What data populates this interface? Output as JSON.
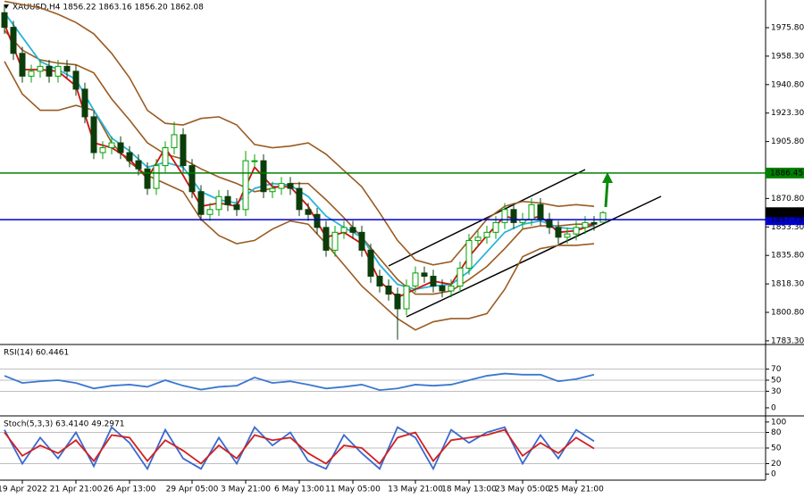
{
  "chart_data": [
    {
      "type": "candlestick",
      "title": "XAUUSD,H4 1856.22 1863.16 1856.20 1862.08",
      "up_color": "#00a000",
      "down_color": "#0b3d0b",
      "open": [
        1985,
        1976,
        1960,
        1946,
        1949,
        1952,
        1946,
        1952,
        1949,
        1938,
        1921,
        1899,
        1902,
        1905,
        1899,
        1894,
        1889,
        1877,
        1891,
        1902,
        1910,
        1891,
        1875,
        1861,
        1864,
        1872,
        1867,
        1864,
        1894,
        1894,
        1875,
        1877,
        1880,
        1877,
        1864,
        1861,
        1853,
        1839,
        1850,
        1853,
        1850,
        1839,
        1823,
        1817,
        1812,
        1803,
        1817,
        1825,
        1823,
        1817,
        1814,
        1817,
        1828,
        1845,
        1847,
        1850,
        1856,
        1864,
        1856,
        1858,
        1867,
        1858,
        1853,
        1847,
        1849,
        1853,
        1856,
        1856.22
      ],
      "high": [
        1990,
        1980,
        1964,
        1953,
        1956,
        1956,
        1956,
        1956,
        1953,
        1942,
        1925,
        1906,
        1909,
        1909,
        1903,
        1898,
        1893,
        1895,
        1906,
        1918,
        1914,
        1895,
        1879,
        1868,
        1876,
        1876,
        1871,
        1900,
        1898,
        1898,
        1881,
        1884,
        1884,
        1881,
        1868,
        1865,
        1857,
        1854,
        1857,
        1857,
        1854,
        1843,
        1827,
        1821,
        1816,
        1821,
        1829,
        1829,
        1827,
        1821,
        1821,
        1832,
        1849,
        1851,
        1854,
        1860,
        1868,
        1868,
        1862,
        1871,
        1871,
        1862,
        1857,
        1853,
        1857,
        1860,
        1860,
        1863.16
      ],
      "low": [
        1972,
        1956,
        1942,
        1942,
        1945,
        1942,
        1942,
        1945,
        1934,
        1917,
        1895,
        1895,
        1898,
        1895,
        1890,
        1885,
        1873,
        1873,
        1887,
        1898,
        1887,
        1871,
        1857,
        1857,
        1860,
        1863,
        1860,
        1860,
        1890,
        1871,
        1871,
        1873,
        1873,
        1860,
        1857,
        1849,
        1835,
        1835,
        1846,
        1846,
        1835,
        1819,
        1813,
        1808,
        1784,
        1799,
        1813,
        1819,
        1813,
        1810,
        1810,
        1813,
        1824,
        1841,
        1843,
        1846,
        1852,
        1852,
        1852,
        1854,
        1854,
        1849,
        1843,
        1843,
        1845,
        1849,
        1851,
        1856.2
      ],
      "close": [
        1976,
        1960,
        1946,
        1949,
        1952,
        1946,
        1952,
        1949,
        1938,
        1921,
        1899,
        1902,
        1905,
        1899,
        1894,
        1889,
        1877,
        1891,
        1902,
        1910,
        1891,
        1875,
        1861,
        1864,
        1872,
        1867,
        1864,
        1894,
        1894,
        1875,
        1877,
        1880,
        1877,
        1864,
        1861,
        1853,
        1839,
        1850,
        1853,
        1850,
        1839,
        1823,
        1817,
        1812,
        1803,
        1817,
        1825,
        1823,
        1817,
        1814,
        1817,
        1828,
        1845,
        1847,
        1850,
        1856,
        1864,
        1856,
        1858,
        1867,
        1858,
        1853,
        1847,
        1849,
        1853,
        1856,
        1855,
        1862.08
      ],
      "categories": [
        null,
        null,
        "19 Apr 2022",
        null,
        null,
        null,
        null,
        null,
        "21 Apr 21:00",
        null,
        null,
        null,
        null,
        null,
        "26 Apr 13:00",
        null,
        null,
        null,
        null,
        null,
        null,
        "29 Apr 05:00",
        null,
        null,
        null,
        null,
        null,
        "3 May 21:00",
        null,
        null,
        null,
        null,
        null,
        "6 May 13:00",
        null,
        null,
        null,
        null,
        null,
        "11 May 05:00",
        null,
        null,
        null,
        null,
        null,
        null,
        "13 May 21:00",
        null,
        null,
        null,
        null,
        null,
        "18 May 13:00",
        null,
        null,
        null,
        null,
        null,
        "23 May 05:00",
        null,
        null,
        null,
        null,
        null,
        "25 May 21:00",
        null,
        null,
        null
      ],
      "overlay_x": [
        0,
        2,
        4,
        6,
        8,
        10,
        12,
        14,
        16,
        18,
        20,
        22,
        24,
        26,
        28,
        30,
        32,
        34,
        36,
        38,
        40,
        42,
        44,
        46,
        48,
        50,
        52,
        54,
        56,
        58,
        60,
        62,
        64,
        66
      ],
      "overlays": [
        {
          "color": "#9a5b22",
          "values": [
            1992,
            1990,
            1988,
            1984,
            1979,
            1972,
            1960,
            1945,
            1925,
            1917,
            1916,
            1920,
            1921,
            1916,
            1904,
            1902,
            1903,
            1905,
            1898,
            1888,
            1878,
            1862,
            1845,
            1833,
            1830,
            1832,
            1845,
            1858,
            1866,
            1869,
            1868,
            1866,
            1867,
            1866
          ]
        },
        {
          "color": "#9a5b22",
          "values": [
            1974,
            1962,
            1956,
            1954,
            1953,
            1948,
            1932,
            1919,
            1905,
            1898,
            1895,
            1889,
            1884,
            1880,
            1875,
            1877,
            1880,
            1880,
            1870,
            1859,
            1847,
            1834,
            1821,
            1812,
            1812,
            1814,
            1821,
            1829,
            1840,
            1852,
            1854,
            1854,
            1855,
            1855
          ]
        },
        {
          "color": "#9a5b22",
          "values": [
            1955,
            1935,
            1925,
            1925,
            1928,
            1925,
            1905,
            1893,
            1885,
            1880,
            1875,
            1858,
            1848,
            1843,
            1845,
            1852,
            1857,
            1855,
            1843,
            1830,
            1817,
            1807,
            1797,
            1790,
            1795,
            1797,
            1797,
            1800,
            1815,
            1835,
            1840,
            1842,
            1842,
            1843
          ]
        },
        {
          "color": "#2ab4d8",
          "values": [
            1985,
            1970,
            1955,
            1950,
            1944,
            1925,
            1908,
            1900,
            1890,
            1893,
            1890,
            1875,
            1870,
            1868,
            1877,
            1880,
            1879,
            1872,
            1860,
            1853,
            1847,
            1830,
            1818,
            1815,
            1817,
            1818,
            1826,
            1838,
            1850,
            1855,
            1857,
            1853,
            1852,
            1854
          ]
        },
        {
          "color": "#d01010",
          "values": [
            1978,
            1950,
            1950,
            1949,
            1940,
            1905,
            1902,
            1895,
            1883,
            1902,
            1885,
            1866,
            1868,
            1866,
            1890,
            1878,
            1878,
            1866,
            1847,
            1850,
            1843,
            1820,
            1810,
            1815,
            1820,
            1818,
            1835,
            1848,
            1860,
            1857,
            1860,
            1850,
            1851,
            1855
          ]
        }
      ],
      "hlines": [
        {
          "value": 1886.45,
          "color": "#008000"
        },
        {
          "value": 1857.75,
          "color": "#0000cc"
        }
      ],
      "last_price": 1862.08,
      "ylim": [
        1781.6,
        1992.8
      ],
      "yticks": [
        {
          "value": 1783.3,
          "label": "1783.30"
        },
        {
          "value": 1800.8,
          "label": "1800.80"
        },
        {
          "value": 1818.3,
          "label": "1818.30"
        },
        {
          "value": 1835.8,
          "label": "1835.80"
        },
        {
          "value": 1853.3,
          "label": "1853.30"
        },
        {
          "value": 1870.8,
          "label": "1870.80"
        },
        {
          "value": 1905.8,
          "label": "1905.80"
        },
        {
          "value": 1923.3,
          "label": "1923.30"
        },
        {
          "value": 1940.8,
          "label": "1940.80"
        },
        {
          "value": 1958.3,
          "label": "1958.30"
        },
        {
          "value": 1975.8,
          "label": "1975.80"
        }
      ]
    },
    {
      "type": "line",
      "title": "RSI(14) 60.4461",
      "x": [
        0,
        2,
        4,
        6,
        8,
        10,
        12,
        14,
        16,
        18,
        20,
        22,
        24,
        26,
        28,
        30,
        32,
        34,
        36,
        38,
        40,
        42,
        44,
        46,
        48,
        50,
        52,
        54,
        56,
        58,
        60,
        62,
        64,
        66
      ],
      "series": [
        {
          "color": "#3a78d0",
          "values": [
            58,
            45,
            48,
            50,
            45,
            35,
            40,
            42,
            38,
            50,
            40,
            33,
            38,
            40,
            55,
            45,
            48,
            42,
            35,
            38,
            42,
            32,
            35,
            42,
            40,
            42,
            50,
            58,
            62,
            60,
            60,
            48,
            52,
            60
          ]
        }
      ],
      "levels": [
        30,
        50,
        70
      ],
      "ylim": [
        -13,
        113
      ],
      "yticks": [
        0,
        30,
        50,
        70
      ]
    },
    {
      "type": "line",
      "title": "Stoch(5,3,3) 63.4140 49.2971",
      "x": [
        0,
        2,
        4,
        6,
        8,
        10,
        12,
        14,
        16,
        18,
        20,
        22,
        24,
        26,
        28,
        30,
        32,
        34,
        36,
        38,
        40,
        42,
        44,
        46,
        48,
        50,
        52,
        54,
        56,
        58,
        60,
        62,
        64,
        66
      ],
      "series": [
        {
          "color": "#3a68d0",
          "values": [
            85,
            20,
            70,
            30,
            80,
            15,
            90,
            60,
            10,
            85,
            30,
            10,
            70,
            20,
            90,
            55,
            80,
            25,
            10,
            75,
            40,
            10,
            90,
            70,
            10,
            85,
            60,
            80,
            90,
            20,
            75,
            30,
            85,
            63
          ]
        },
        {
          "color": "#d02020",
          "values": [
            80,
            35,
            55,
            40,
            65,
            25,
            75,
            70,
            25,
            65,
            45,
            20,
            55,
            30,
            75,
            65,
            70,
            40,
            20,
            55,
            50,
            20,
            70,
            80,
            25,
            65,
            70,
            75,
            85,
            35,
            60,
            40,
            70,
            49
          ]
        }
      ],
      "levels": [
        20,
        50,
        80
      ],
      "ylim": [
        -10,
        110
      ],
      "yticks": [
        0,
        20,
        50,
        80,
        100
      ]
    }
  ]
}
